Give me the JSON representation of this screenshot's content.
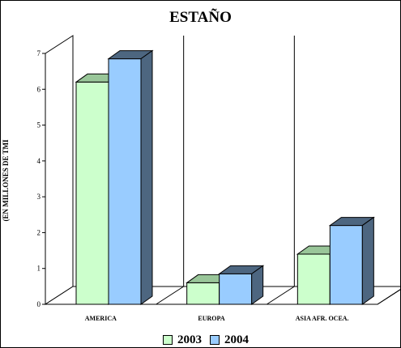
{
  "chart_data": {
    "type": "bar",
    "title": "ESTAÑO",
    "ylabel": "(EN MILLONES DE TMI",
    "xlabel": "",
    "categories": [
      "AMERICA",
      "EUROPA",
      "ASIA  AFR. OCEA."
    ],
    "series": [
      {
        "name": "2003",
        "values": [
          6.2,
          0.6,
          1.4
        ],
        "color": "#ccffcc",
        "dark": "#99c699"
      },
      {
        "name": "2004",
        "values": [
          6.85,
          0.85,
          2.2
        ],
        "color": "#99ccff",
        "dark": "#4d6680"
      }
    ],
    "yticks": [
      "0",
      "1",
      "2",
      "3",
      "4",
      "5",
      "6",
      "7"
    ],
    "ylim": [
      0,
      7
    ],
    "grid": false,
    "legend": "bottom"
  }
}
